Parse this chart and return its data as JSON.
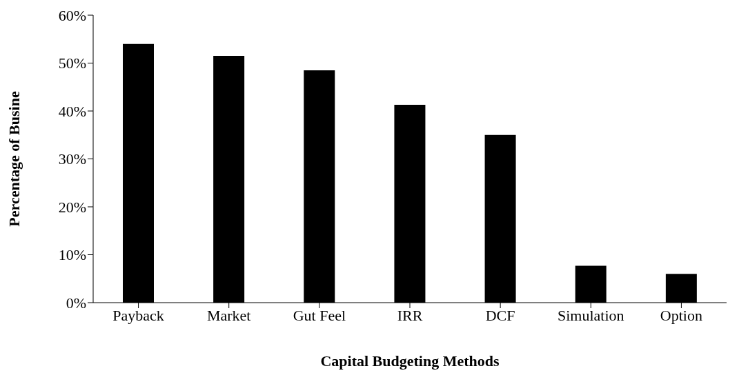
{
  "chart_data": {
    "type": "bar",
    "xlabel": "Capital Budgeting Methods",
    "ylabel": "Percentage of Busine",
    "categories": [
      "Payback",
      "Market",
      "Gut Feel",
      "IRR",
      "DCF",
      "Simulation",
      "Option"
    ],
    "values": [
      54,
      51.5,
      48.5,
      41.3,
      35,
      7.7,
      6
    ],
    "color": "#000000",
    "ylim": [
      0,
      60
    ],
    "yticks": [
      {
        "value": 0,
        "label": "0%"
      },
      {
        "value": 10,
        "label": "10%"
      },
      {
        "value": 20,
        "label": "20%"
      },
      {
        "value": 30,
        "label": "30%"
      },
      {
        "value": 40,
        "label": "40%"
      },
      {
        "value": 50,
        "label": "50%"
      },
      {
        "value": 60,
        "label": "60%"
      }
    ],
    "grid": false,
    "legend": false
  }
}
